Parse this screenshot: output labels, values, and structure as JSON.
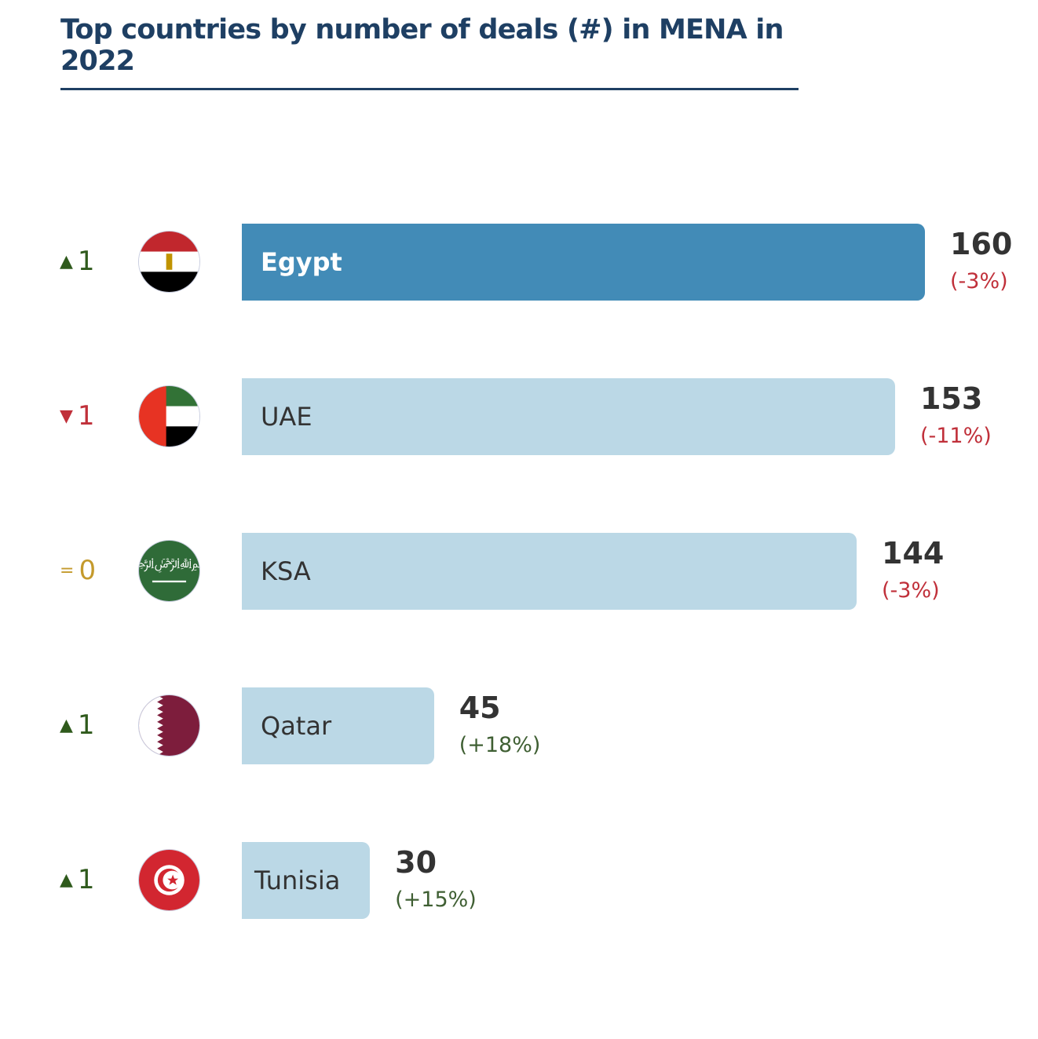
{
  "chart_data": {
    "type": "bar",
    "orientation": "horizontal",
    "title": "Top countries by number of deals (#) in MENA in 2022",
    "categories": [
      "Egypt",
      "UAE",
      "KSA",
      "Qatar",
      "Tunisia"
    ],
    "values": [
      160,
      153,
      144,
      45,
      30
    ],
    "xmax": 160,
    "rows": [
      {
        "country": "Egypt",
        "value": "160",
        "change": "(-3%)",
        "change_dir": "down",
        "rank_symbol": "▲",
        "rank_change": "1",
        "rank_dir": "up",
        "highlight": true
      },
      {
        "country": "UAE",
        "value": "153",
        "change": "(-11%)",
        "change_dir": "down",
        "rank_symbol": "▼",
        "rank_change": "1",
        "rank_dir": "down",
        "highlight": false
      },
      {
        "country": "KSA",
        "value": "144",
        "change": "(-3%)",
        "change_dir": "down",
        "rank_symbol": "=",
        "rank_change": "0",
        "rank_dir": "same",
        "highlight": false
      },
      {
        "country": "Qatar",
        "value": "45",
        "change": "(+18%)",
        "change_dir": "up",
        "rank_symbol": "▲",
        "rank_change": "1",
        "rank_dir": "up",
        "highlight": false
      },
      {
        "country": "Tunisia",
        "value": "30",
        "change": "(+15%)",
        "change_dir": "up",
        "rank_symbol": "▲",
        "rank_change": "1",
        "rank_dir": "up",
        "highlight": false
      }
    ]
  },
  "colors": {
    "highlight_bar": "#428bb7",
    "bar": "#bbd8e6",
    "up": "#2f5a1c",
    "down": "#c0303a",
    "same": "#c49a2c",
    "pct_up": "#3f5f33",
    "pct_down": "#c0303a"
  }
}
